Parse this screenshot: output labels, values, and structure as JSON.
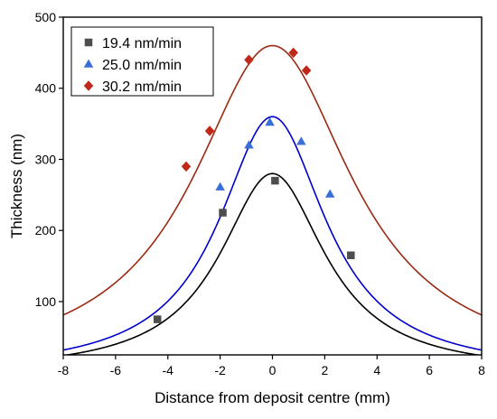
{
  "chart_data": {
    "type": "scatter",
    "xlabel": "Distance from deposit centre (mm)",
    "ylabel": "Thickness (nm)",
    "xlim": [
      -8,
      8
    ],
    "ylim": [
      25,
      500
    ],
    "xticks": [
      -8,
      -6,
      -4,
      -2,
      0,
      2,
      4,
      6,
      8
    ],
    "yticks": [
      100,
      200,
      300,
      400,
      500
    ],
    "x_tick_labels": [
      "-8",
      "-6",
      "-4",
      "-2",
      "0",
      "2",
      "4",
      "6",
      "8"
    ],
    "y_tick_labels": [
      "100",
      "200",
      "300",
      "400",
      "500"
    ],
    "grid": false,
    "legend": "top-left",
    "series": [
      {
        "name": "19.4 nm/min",
        "marker": "square",
        "color": "#4d4d4d",
        "line_color": "#000000",
        "x": [
          -4.4,
          -1.9,
          0.1,
          3.0
        ],
        "y": [
          75,
          225,
          270,
          165
        ],
        "fit": {
          "peak": 280,
          "center": 0,
          "width": 2.45,
          "baseline": 0
        }
      },
      {
        "name": "25.0 nm/min",
        "marker": "triangle",
        "color": "#3a6fd8",
        "line_color": "#0000cc",
        "x": [
          -2.0,
          -0.9,
          -0.1,
          1.1,
          2.2
        ],
        "y": [
          261,
          320,
          352,
          325,
          251
        ],
        "fit": {
          "peak": 360,
          "center": 0,
          "width": 2.49,
          "baseline": 0
        }
      },
      {
        "name": "30.2 nm/min",
        "marker": "diamond",
        "color": "#c0281a",
        "line_color": "#9b2a12",
        "x": [
          -3.3,
          -2.4,
          -0.9,
          0.8,
          1.3
        ],
        "y": [
          290,
          340,
          440,
          450,
          425
        ],
        "fit": {
          "peak": 460,
          "center": 0,
          "width": 3.7,
          "baseline": 0
        }
      }
    ]
  }
}
